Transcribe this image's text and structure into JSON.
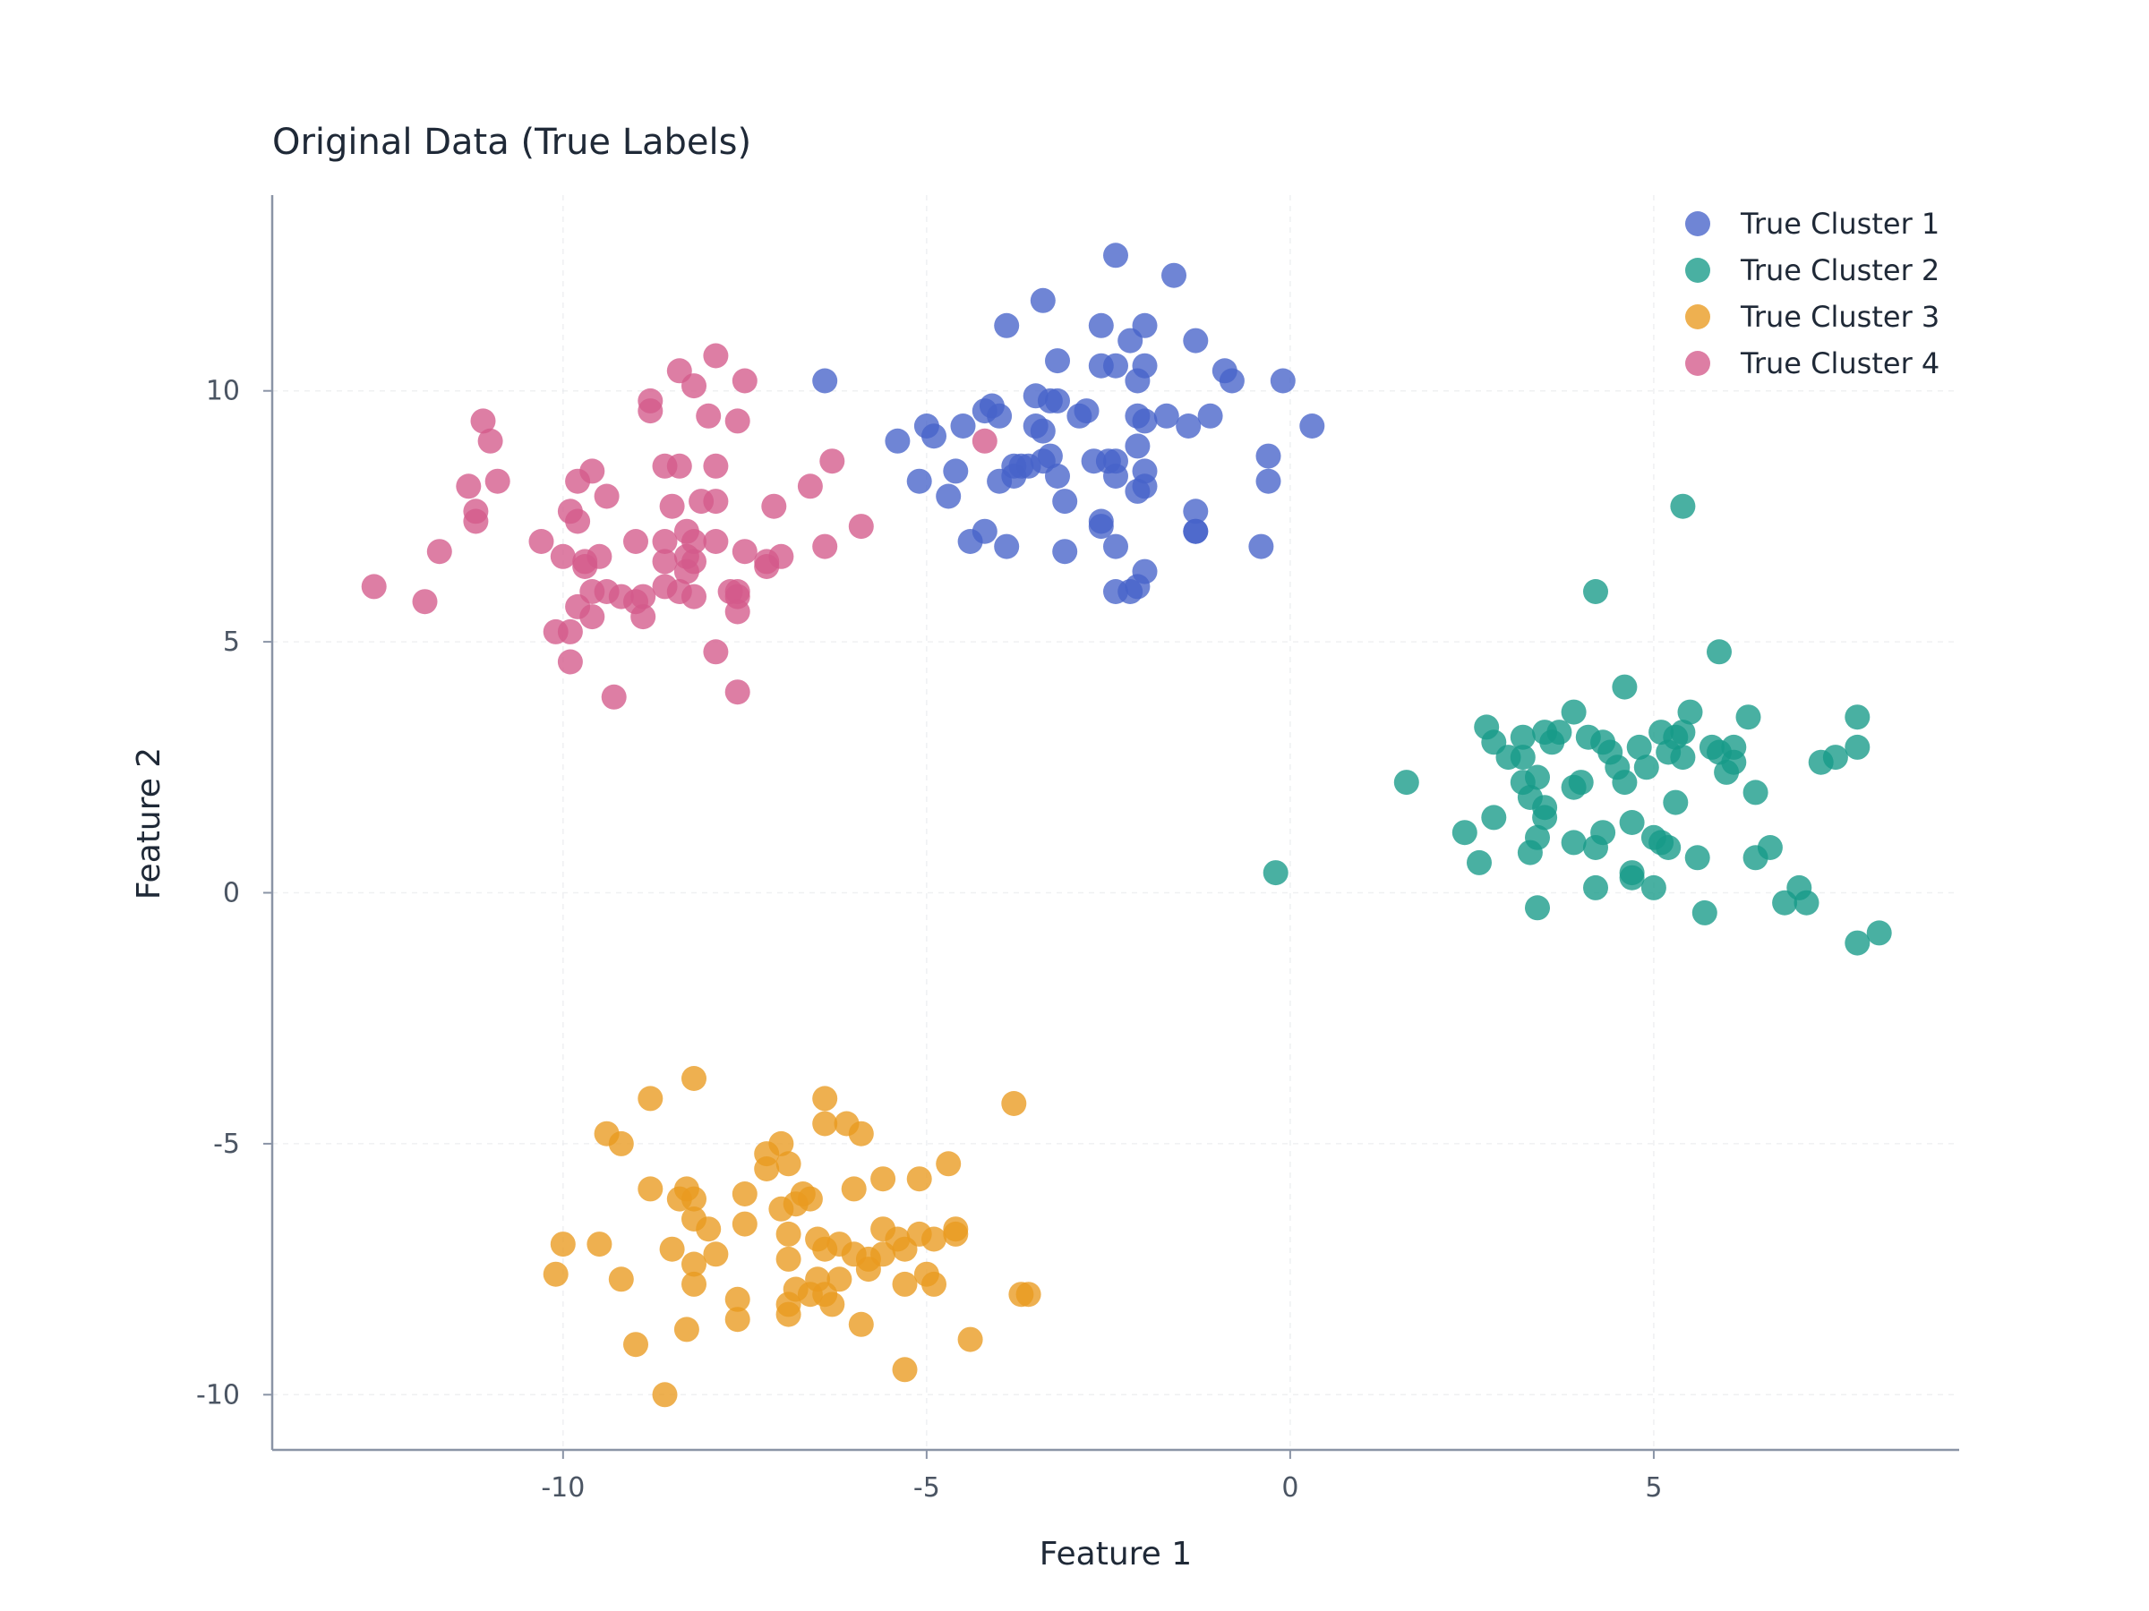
{
  "chart_data": {
    "type": "scatter",
    "title": "Original Data (True Labels)",
    "xlabel": "Feature 1",
    "ylabel": "Feature 2",
    "xlim": [
      -14,
      9.2
    ],
    "ylim": [
      -11.1,
      13.9
    ],
    "xticks": [
      -10,
      -5,
      0,
      5
    ],
    "yticks": [
      -10,
      -5,
      0,
      5,
      10
    ],
    "grid": true,
    "legend_position": "top-right",
    "series": [
      {
        "name": "True Cluster 1",
        "color": "#4763c9",
        "points": [
          [
            -2.4,
            12.7
          ],
          [
            -1.6,
            12.3
          ],
          [
            -3.4,
            11.8
          ],
          [
            -3.9,
            11.3
          ],
          [
            -2.6,
            11.3
          ],
          [
            -2.0,
            11.3
          ],
          [
            -2.2,
            11.0
          ],
          [
            -1.3,
            11.0
          ],
          [
            -3.2,
            10.6
          ],
          [
            -2.6,
            10.5
          ],
          [
            -2.4,
            10.5
          ],
          [
            -2.0,
            10.5
          ],
          [
            -2.1,
            10.2
          ],
          [
            -0.9,
            10.4
          ],
          [
            -0.8,
            10.2
          ],
          [
            -0.1,
            10.2
          ],
          [
            -3.5,
            9.9
          ],
          [
            -3.3,
            9.8
          ],
          [
            -3.2,
            9.8
          ],
          [
            -4.2,
            9.6
          ],
          [
            -4.1,
            9.7
          ],
          [
            -4.0,
            9.5
          ],
          [
            -2.9,
            9.5
          ],
          [
            -2.8,
            9.6
          ],
          [
            -2.1,
            9.5
          ],
          [
            -2.0,
            9.4
          ],
          [
            -1.7,
            9.5
          ],
          [
            -1.1,
            9.5
          ],
          [
            -1.4,
            9.3
          ],
          [
            -5.0,
            9.3
          ],
          [
            -4.5,
            9.3
          ],
          [
            -4.9,
            9.1
          ],
          [
            -3.5,
            9.3
          ],
          [
            -3.4,
            9.2
          ],
          [
            0.3,
            9.3
          ],
          [
            -5.4,
            9.0
          ],
          [
            -2.1,
            8.9
          ],
          [
            -3.3,
            8.7
          ],
          [
            -3.7,
            8.5
          ],
          [
            -3.8,
            8.5
          ],
          [
            -3.6,
            8.5
          ],
          [
            -3.4,
            8.6
          ],
          [
            -2.7,
            8.6
          ],
          [
            -2.5,
            8.6
          ],
          [
            -2.4,
            8.6
          ],
          [
            -2.0,
            8.4
          ],
          [
            -0.3,
            8.7
          ],
          [
            -4.6,
            8.4
          ],
          [
            -3.8,
            8.3
          ],
          [
            -3.2,
            8.3
          ],
          [
            -2.4,
            8.3
          ],
          [
            -0.3,
            8.2
          ],
          [
            -5.1,
            8.2
          ],
          [
            -4.0,
            8.2
          ],
          [
            -4.7,
            7.9
          ],
          [
            -3.1,
            7.8
          ],
          [
            -2.1,
            8.0
          ],
          [
            -2.0,
            8.1
          ],
          [
            -1.3,
            7.6
          ],
          [
            -2.6,
            7.4
          ],
          [
            -2.6,
            7.3
          ],
          [
            -1.3,
            7.2
          ],
          [
            -1.3,
            7.2
          ],
          [
            -4.4,
            7.0
          ],
          [
            -4.2,
            7.2
          ],
          [
            -3.9,
            6.9
          ],
          [
            -3.1,
            6.8
          ],
          [
            -2.4,
            6.9
          ],
          [
            -0.4,
            6.9
          ],
          [
            -2.0,
            6.4
          ],
          [
            -2.4,
            6.0
          ],
          [
            -2.2,
            6.0
          ],
          [
            -2.1,
            6.1
          ],
          [
            -6.4,
            10.2
          ]
        ]
      },
      {
        "name": "True Cluster 2",
        "color": "#169a88",
        "points": [
          [
            5.4,
            7.7
          ],
          [
            4.2,
            6.0
          ],
          [
            5.9,
            4.8
          ],
          [
            4.6,
            4.1
          ],
          [
            5.5,
            3.6
          ],
          [
            6.3,
            3.5
          ],
          [
            7.8,
            3.5
          ],
          [
            3.9,
            3.6
          ],
          [
            2.7,
            3.3
          ],
          [
            3.2,
            3.1
          ],
          [
            3.5,
            3.2
          ],
          [
            3.7,
            3.2
          ],
          [
            4.1,
            3.1
          ],
          [
            4.3,
            3.0
          ],
          [
            4.8,
            2.9
          ],
          [
            5.1,
            3.2
          ],
          [
            5.3,
            3.1
          ],
          [
            5.4,
            3.2
          ],
          [
            2.8,
            3.0
          ],
          [
            3.0,
            2.7
          ],
          [
            3.2,
            2.7
          ],
          [
            3.6,
            3.0
          ],
          [
            4.4,
            2.8
          ],
          [
            5.2,
            2.8
          ],
          [
            5.8,
            2.9
          ],
          [
            5.9,
            2.8
          ],
          [
            6.1,
            2.9
          ],
          [
            7.8,
            2.9
          ],
          [
            4.9,
            2.5
          ],
          [
            5.4,
            2.7
          ],
          [
            6.1,
            2.6
          ],
          [
            6.0,
            2.4
          ],
          [
            7.3,
            2.6
          ],
          [
            7.5,
            2.7
          ],
          [
            1.6,
            2.2
          ],
          [
            3.2,
            2.2
          ],
          [
            3.4,
            2.3
          ],
          [
            3.9,
            2.1
          ],
          [
            4.0,
            2.2
          ],
          [
            4.6,
            2.2
          ],
          [
            4.5,
            2.5
          ],
          [
            6.4,
            2.0
          ],
          [
            3.3,
            1.9
          ],
          [
            3.5,
            1.7
          ],
          [
            3.5,
            1.5
          ],
          [
            5.3,
            1.8
          ],
          [
            2.8,
            1.5
          ],
          [
            2.4,
            1.2
          ],
          [
            3.4,
            1.1
          ],
          [
            4.3,
            1.2
          ],
          [
            4.7,
            1.4
          ],
          [
            5.0,
            1.1
          ],
          [
            5.1,
            1.0
          ],
          [
            5.2,
            0.9
          ],
          [
            3.9,
            1.0
          ],
          [
            4.2,
            0.9
          ],
          [
            3.3,
            0.8
          ],
          [
            5.6,
            0.7
          ],
          [
            6.6,
            0.9
          ],
          [
            6.4,
            0.7
          ],
          [
            2.6,
            0.6
          ],
          [
            4.7,
            0.3
          ],
          [
            4.7,
            0.4
          ],
          [
            4.2,
            0.1
          ],
          [
            5.0,
            0.1
          ],
          [
            7.0,
            0.1
          ],
          [
            -0.2,
            0.4
          ],
          [
            6.8,
            -0.2
          ],
          [
            7.1,
            -0.2
          ],
          [
            3.4,
            -0.3
          ],
          [
            5.7,
            -0.4
          ],
          [
            7.8,
            -1.0
          ],
          [
            8.1,
            -0.8
          ]
        ]
      },
      {
        "name": "True Cluster 3",
        "color": "#e99a1f",
        "points": [
          [
            -8.2,
            -3.7
          ],
          [
            -8.8,
            -4.1
          ],
          [
            -6.4,
            -4.1
          ],
          [
            -3.8,
            -4.2
          ],
          [
            -6.1,
            -4.6
          ],
          [
            -6.4,
            -4.6
          ],
          [
            -5.9,
            -4.8
          ],
          [
            -9.4,
            -4.8
          ],
          [
            -9.2,
            -5.0
          ],
          [
            -7.0,
            -5.0
          ],
          [
            -7.2,
            -5.2
          ],
          [
            -7.2,
            -5.5
          ],
          [
            -6.9,
            -5.4
          ],
          [
            -4.7,
            -5.4
          ],
          [
            -5.6,
            -5.7
          ],
          [
            -5.1,
            -5.7
          ],
          [
            -8.8,
            -5.9
          ],
          [
            -8.3,
            -5.9
          ],
          [
            -7.5,
            -6.0
          ],
          [
            -6.7,
            -6.0
          ],
          [
            -6.6,
            -6.1
          ],
          [
            -6.8,
            -6.2
          ],
          [
            -6.0,
            -5.9
          ],
          [
            -8.2,
            -6.1
          ],
          [
            -8.4,
            -6.1
          ],
          [
            -7.0,
            -6.3
          ],
          [
            -8.2,
            -6.5
          ],
          [
            -8.0,
            -6.7
          ],
          [
            -7.5,
            -6.6
          ],
          [
            -6.9,
            -6.8
          ],
          [
            -6.5,
            -6.9
          ],
          [
            -6.2,
            -7.0
          ],
          [
            -5.6,
            -6.7
          ],
          [
            -5.4,
            -6.9
          ],
          [
            -5.1,
            -6.8
          ],
          [
            -4.9,
            -6.9
          ],
          [
            -4.6,
            -6.8
          ],
          [
            -4.6,
            -6.7
          ],
          [
            -10.0,
            -7.0
          ],
          [
            -9.5,
            -7.0
          ],
          [
            -8.5,
            -7.1
          ],
          [
            -7.9,
            -7.2
          ],
          [
            -8.2,
            -7.4
          ],
          [
            -6.9,
            -7.3
          ],
          [
            -6.4,
            -7.1
          ],
          [
            -5.8,
            -7.3
          ],
          [
            -6.0,
            -7.2
          ],
          [
            -5.8,
            -7.5
          ],
          [
            -5.6,
            -7.2
          ],
          [
            -5.3,
            -7.1
          ],
          [
            -10.1,
            -7.6
          ],
          [
            -9.2,
            -7.7
          ],
          [
            -8.2,
            -7.8
          ],
          [
            -6.5,
            -7.7
          ],
          [
            -6.2,
            -7.7
          ],
          [
            -5.3,
            -7.8
          ],
          [
            -5.0,
            -7.6
          ],
          [
            -4.9,
            -7.8
          ],
          [
            -7.6,
            -8.1
          ],
          [
            -6.8,
            -7.9
          ],
          [
            -6.6,
            -8.0
          ],
          [
            -6.4,
            -8.0
          ],
          [
            -6.3,
            -8.2
          ],
          [
            -3.7,
            -8.0
          ],
          [
            -3.6,
            -8.0
          ],
          [
            -7.6,
            -8.5
          ],
          [
            -6.9,
            -8.4
          ],
          [
            -6.9,
            -8.2
          ],
          [
            -5.9,
            -8.6
          ],
          [
            -8.3,
            -8.7
          ],
          [
            -9.0,
            -9.0
          ],
          [
            -4.4,
            -8.9
          ],
          [
            -5.3,
            -9.5
          ],
          [
            -8.6,
            -10.0
          ]
        ]
      },
      {
        "name": "True Cluster 4",
        "color": "#d35a8a",
        "points": [
          [
            -7.9,
            10.7
          ],
          [
            -8.4,
            10.4
          ],
          [
            -8.2,
            10.1
          ],
          [
            -7.5,
            10.2
          ],
          [
            -8.8,
            9.8
          ],
          [
            -8.8,
            9.6
          ],
          [
            -8.0,
            9.5
          ],
          [
            -7.6,
            9.4
          ],
          [
            -11.1,
            9.4
          ],
          [
            -11.0,
            9.0
          ],
          [
            -6.3,
            8.6
          ],
          [
            -9.6,
            8.4
          ],
          [
            -8.6,
            8.5
          ],
          [
            -8.4,
            8.5
          ],
          [
            -7.9,
            8.5
          ],
          [
            -11.3,
            8.1
          ],
          [
            -10.9,
            8.2
          ],
          [
            -9.8,
            8.2
          ],
          [
            -6.6,
            8.1
          ],
          [
            -9.4,
            7.9
          ],
          [
            -8.1,
            7.8
          ],
          [
            -7.9,
            7.8
          ],
          [
            -7.1,
            7.7
          ],
          [
            -11.2,
            7.6
          ],
          [
            -9.9,
            7.6
          ],
          [
            -8.5,
            7.7
          ],
          [
            -11.2,
            7.4
          ],
          [
            -9.8,
            7.4
          ],
          [
            -8.3,
            7.2
          ],
          [
            -5.9,
            7.3
          ],
          [
            -10.3,
            7.0
          ],
          [
            -9.0,
            7.0
          ],
          [
            -8.6,
            7.0
          ],
          [
            -8.2,
            7.0
          ],
          [
            -7.9,
            7.0
          ],
          [
            -6.4,
            6.9
          ],
          [
            -11.7,
            6.8
          ],
          [
            -10.0,
            6.7
          ],
          [
            -9.7,
            6.6
          ],
          [
            -9.5,
            6.7
          ],
          [
            -8.6,
            6.6
          ],
          [
            -8.3,
            6.7
          ],
          [
            -8.2,
            6.6
          ],
          [
            -7.5,
            6.8
          ],
          [
            -7.2,
            6.5
          ],
          [
            -7.2,
            6.6
          ],
          [
            -7.0,
            6.7
          ],
          [
            -9.7,
            6.5
          ],
          [
            -8.3,
            6.4
          ],
          [
            -9.6,
            6.0
          ],
          [
            -9.4,
            6.0
          ],
          [
            -9.2,
            5.9
          ],
          [
            -8.9,
            5.9
          ],
          [
            -8.6,
            6.1
          ],
          [
            -8.4,
            6.0
          ],
          [
            -7.7,
            6.0
          ],
          [
            -7.6,
            5.9
          ],
          [
            -7.6,
            6.0
          ],
          [
            -12.6,
            6.1
          ],
          [
            -11.9,
            5.8
          ],
          [
            -9.0,
            5.8
          ],
          [
            -8.2,
            5.9
          ],
          [
            -9.8,
            5.7
          ],
          [
            -9.6,
            5.5
          ],
          [
            -8.9,
            5.5
          ],
          [
            -7.6,
            5.6
          ],
          [
            -10.1,
            5.2
          ],
          [
            -9.9,
            5.2
          ],
          [
            -7.9,
            4.8
          ],
          [
            -9.9,
            4.6
          ],
          [
            -7.6,
            4.0
          ],
          [
            -9.3,
            3.9
          ],
          [
            -4.2,
            9.0
          ]
        ]
      }
    ]
  }
}
